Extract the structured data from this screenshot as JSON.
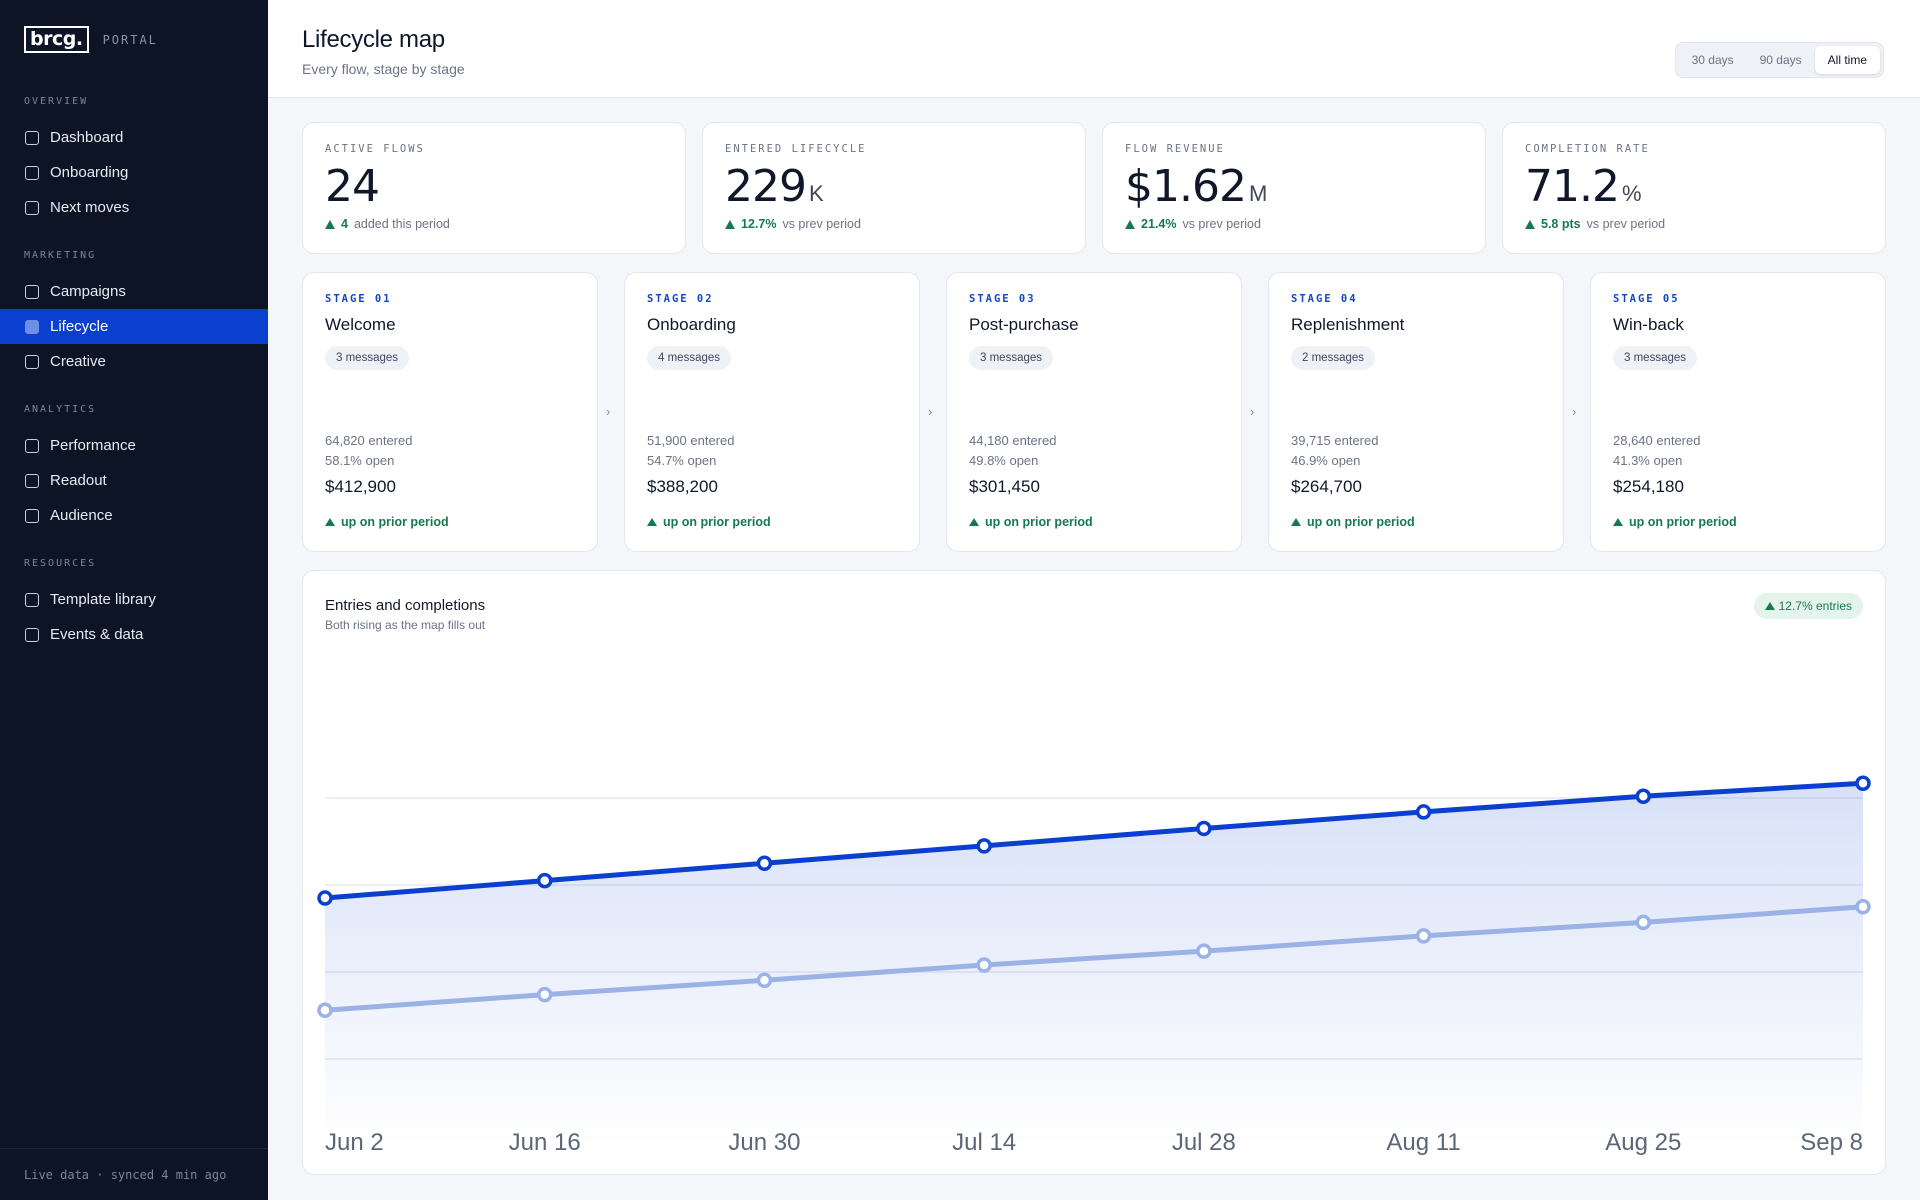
{
  "brand": {
    "logo": "brcg.",
    "subtitle": "PORTAL"
  },
  "sidebar": {
    "sections": [
      {
        "title": "OVERVIEW",
        "items": [
          "Dashboard",
          "Onboarding",
          "Next moves"
        ]
      },
      {
        "title": "MARKETING",
        "items": [
          "Campaigns",
          "Lifecycle",
          "Creative"
        ]
      },
      {
        "title": "ANALYTICS",
        "items": [
          "Performance",
          "Readout",
          "Audience"
        ]
      },
      {
        "title": "RESOURCES",
        "items": [
          "Template library",
          "Events & data"
        ]
      }
    ],
    "active_item": "Lifecycle",
    "footer": "Live data · synced 4 min ago"
  },
  "header": {
    "title": "Lifecycle map",
    "subtitle": "Every flow, stage by stage",
    "ranges": [
      "30 days",
      "90 days",
      "All time"
    ],
    "active_range": "All time"
  },
  "kpis": [
    {
      "label": "ACTIVE FLOWS",
      "value": "24",
      "unit": "",
      "delta": "4",
      "delta_text": "added this period"
    },
    {
      "label": "ENTERED LIFECYCLE",
      "value": "229",
      "unit": "K",
      "delta": "12.7%",
      "delta_text": "vs prev period"
    },
    {
      "label": "FLOW REVENUE",
      "value": "$1.62",
      "unit": "M",
      "delta": "21.4%",
      "delta_text": "vs prev period"
    },
    {
      "label": "COMPLETION RATE",
      "value": "71.2",
      "unit": "%",
      "delta": "5.8 pts",
      "delta_text": "vs prev period"
    }
  ],
  "stages": [
    {
      "label": "STAGE 01",
      "name": "Welcome",
      "messages": "3 messages",
      "entered": "64,820 entered",
      "open": "58.1% open",
      "revenue": "$412,900",
      "trend": "up on prior period"
    },
    {
      "label": "STAGE 02",
      "name": "Onboarding",
      "messages": "4 messages",
      "entered": "51,900 entered",
      "open": "54.7% open",
      "revenue": "$388,200",
      "trend": "up on prior period"
    },
    {
      "label": "STAGE 03",
      "name": "Post-purchase",
      "messages": "3 messages",
      "entered": "44,180 entered",
      "open": "49.8% open",
      "revenue": "$301,450",
      "trend": "up on prior period"
    },
    {
      "label": "STAGE 04",
      "name": "Replenishment",
      "messages": "2 messages",
      "entered": "39,715 entered",
      "open": "46.9% open",
      "revenue": "$264,700",
      "trend": "up on prior period"
    },
    {
      "label": "STAGE 05",
      "name": "Win-back",
      "messages": "3 messages",
      "entered": "28,640 entered",
      "open": "41.3% open",
      "revenue": "$254,180",
      "trend": "up on prior period"
    }
  ],
  "chart": {
    "title": "Entries and completions",
    "subtitle": "Both rising as the map fills out",
    "badge": "12.7% entries"
  },
  "colors": {
    "accent": "#0a3fcf",
    "entries_line": "#0a3fcf",
    "completions_line": "#9ab2e6",
    "positive": "#167a4e",
    "sidebar_bg": "#0c1425"
  },
  "chart_data": {
    "type": "line",
    "categories": [
      "Jun 2",
      "Jun 16",
      "Jun 30",
      "Jul 14",
      "Jul 28",
      "Aug 11",
      "Aug 25",
      "Sep 8"
    ],
    "ylim": [
      0,
      100
    ],
    "grid": true,
    "series": [
      {
        "values": [
          57,
          61,
          65,
          69,
          73,
          76.8,
          80.4,
          83.4
        ]
      },
      {
        "values": [
          31.2,
          34.8,
          38.1,
          41.6,
          44.8,
          48.3,
          51.4,
          55
        ]
      }
    ]
  }
}
